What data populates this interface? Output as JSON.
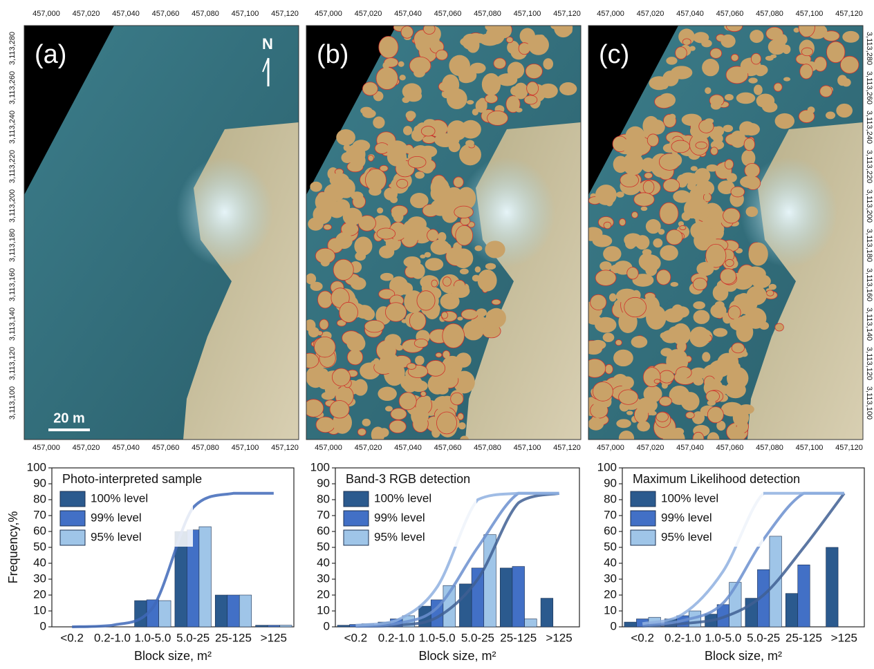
{
  "maps": {
    "panels": [
      "(a)",
      "(b)",
      "(c)"
    ],
    "x_ticks": [
      "457,000",
      "457,020",
      "457,040",
      "457,060",
      "457,080",
      "457,100",
      "457,120"
    ],
    "y_ticks": [
      "3,113,280",
      "3,113,260",
      "3,113,240",
      "3,113,220",
      "3,113,200",
      "3,113,180",
      "3,113,160",
      "3,113,140",
      "3,113,120",
      "3,113,100"
    ],
    "north": "N",
    "scale_bar": "20 m"
  },
  "chart_data": [
    {
      "type": "bar",
      "title": "Photo-interpreted sample",
      "y_label": "Frequency,%",
      "x_label": "Block size, m²",
      "categories": [
        "<0.2",
        "0.2-1.0",
        "1.0-5.0",
        "5.0-25",
        "25-125",
        ">125"
      ],
      "series": [
        {
          "name": "100% level",
          "color": "#2b5a8e",
          "values": [
            0,
            0,
            16.5,
            60,
            20,
            1
          ]
        },
        {
          "name": "99% level",
          "color": "#4270c6",
          "values": [
            0,
            0,
            17,
            61,
            20,
            1
          ]
        },
        {
          "name": "95% level",
          "color": "#9fc5e8",
          "values": [
            0,
            0,
            16.5,
            63,
            20,
            1
          ]
        }
      ],
      "curves": [
        {
          "color": "#3f68b8",
          "values": [
            0,
            1,
            12,
            75,
            84,
            84
          ]
        }
      ],
      "ylim": [
        0,
        100
      ],
      "yticks": [
        0,
        10,
        20,
        30,
        40,
        50,
        60,
        70,
        80,
        90,
        100
      ]
    },
    {
      "type": "bar",
      "title": "Band-3 RGB detection",
      "x_label": "Block size, m²",
      "categories": [
        "<0.2",
        "0.2-1.0",
        "1.0-5.0",
        "5.0-25",
        "25-125",
        ">125"
      ],
      "series": [
        {
          "name": "100% level",
          "color": "#2b5a8e",
          "values": [
            1,
            3,
            13,
            27,
            37,
            18
          ]
        },
        {
          "name": "99% level",
          "color": "#4270c6",
          "values": [
            1.5,
            5,
            17,
            37,
            38,
            0
          ]
        },
        {
          "name": "95% level",
          "color": "#9fc5e8",
          "values": [
            2,
            7,
            26,
            58,
            5,
            0
          ]
        }
      ],
      "curves": [
        {
          "color": "#3f5f93",
          "values": [
            0.3,
            1,
            6,
            30,
            78,
            84
          ]
        },
        {
          "color": "#6b8fcf",
          "values": [
            0.5,
            2,
            12,
            50,
            84,
            84
          ]
        },
        {
          "color": "#8fb0e0",
          "values": [
            1,
            4,
            25,
            80,
            84,
            84
          ]
        }
      ],
      "ylim": [
        0,
        100
      ],
      "yticks": [
        0,
        10,
        20,
        30,
        40,
        50,
        60,
        70,
        80,
        90,
        100
      ]
    },
    {
      "type": "bar",
      "title": "Maximum Likelihood detection",
      "x_label": "Block size, m²",
      "categories": [
        "<0.2",
        "0.2-1.0",
        "1.0-5.0",
        "5.0-25",
        "25-125",
        ">125"
      ],
      "series": [
        {
          "name": "100% level",
          "color": "#2b5a8e",
          "values": [
            3,
            5,
            8,
            18,
            21,
            50
          ]
        },
        {
          "name": "99% level",
          "color": "#4270c6",
          "values": [
            5,
            7,
            14,
            36,
            39,
            0
          ]
        },
        {
          "name": "95% level",
          "color": "#9fc5e8",
          "values": [
            6,
            10,
            28,
            57,
            0,
            0
          ]
        }
      ],
      "curves": [
        {
          "color": "#3f5f93",
          "values": [
            0.5,
            2,
            6,
            20,
            50,
            84
          ]
        },
        {
          "color": "#6b8fcf",
          "values": [
            1,
            4,
            15,
            55,
            84,
            84
          ]
        },
        {
          "color": "#8fb0e0",
          "values": [
            2,
            8,
            35,
            84,
            84,
            84
          ]
        }
      ],
      "ylim": [
        0,
        100
      ],
      "yticks": [
        0,
        10,
        20,
        30,
        40,
        50,
        60,
        70,
        80,
        90,
        100
      ]
    }
  ]
}
